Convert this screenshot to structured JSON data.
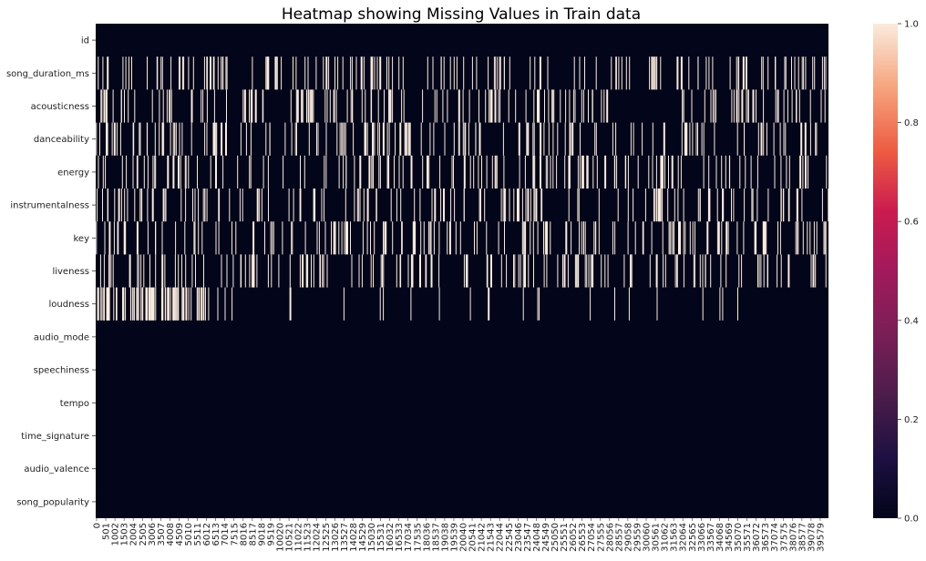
{
  "chart_data": {
    "type": "heatmap",
    "title": "Heatmap showing Missing Values in Train data",
    "rows": [
      "id",
      "song_duration_ms",
      "acousticness",
      "danceability",
      "energy",
      "instrumentalness",
      "key",
      "liveness",
      "loudness",
      "audio_mode",
      "speechiness",
      "tempo",
      "time_signature",
      "audio_valence",
      "song_popularity"
    ],
    "x_tick_labels": [
      "0",
      "501",
      "1002",
      "1503",
      "2004",
      "2505",
      "3006",
      "3507",
      "4008",
      "4509",
      "5010",
      "5511",
      "6012",
      "6513",
      "7014",
      "7515",
      "8016",
      "8517",
      "9018",
      "9519",
      "10020",
      "10521",
      "11022",
      "11523",
      "12024",
      "12525",
      "13026",
      "13527",
      "14028",
      "14529",
      "15030",
      "15531",
      "16032",
      "16533",
      "17034",
      "17535",
      "18036",
      "18537",
      "19038",
      "19539",
      "20040",
      "20541",
      "21042",
      "21543",
      "22044",
      "22545",
      "23046",
      "23547",
      "24048",
      "24549",
      "25050",
      "25551",
      "26052",
      "26553",
      "27054",
      "27555",
      "28056",
      "28557",
      "29058",
      "29559",
      "30060",
      "30561",
      "31062",
      "31563",
      "32064",
      "32565",
      "33066",
      "33567",
      "34068",
      "34569",
      "35070",
      "35571",
      "36072",
      "36573",
      "37074",
      "37575",
      "38076",
      "38577",
      "39078",
      "39579"
    ],
    "n_records": 40000,
    "missing_fraction_by_row": [
      0,
      0.1,
      0.1,
      0.1,
      0.1,
      0.1,
      0.1,
      0.1,
      0.1,
      0,
      0,
      0,
      0,
      0,
      0
    ],
    "loudness_missing_coverage": "mostly in first 12% and sparse afterwards",
    "colorbar": {
      "min": 0.0,
      "max": 1.0,
      "ticks": [
        "0.0",
        "0.2",
        "0.4",
        "0.6",
        "0.8",
        "1.0"
      ]
    },
    "colors": {
      "low": "#03051a",
      "high": "#faebdd"
    }
  }
}
